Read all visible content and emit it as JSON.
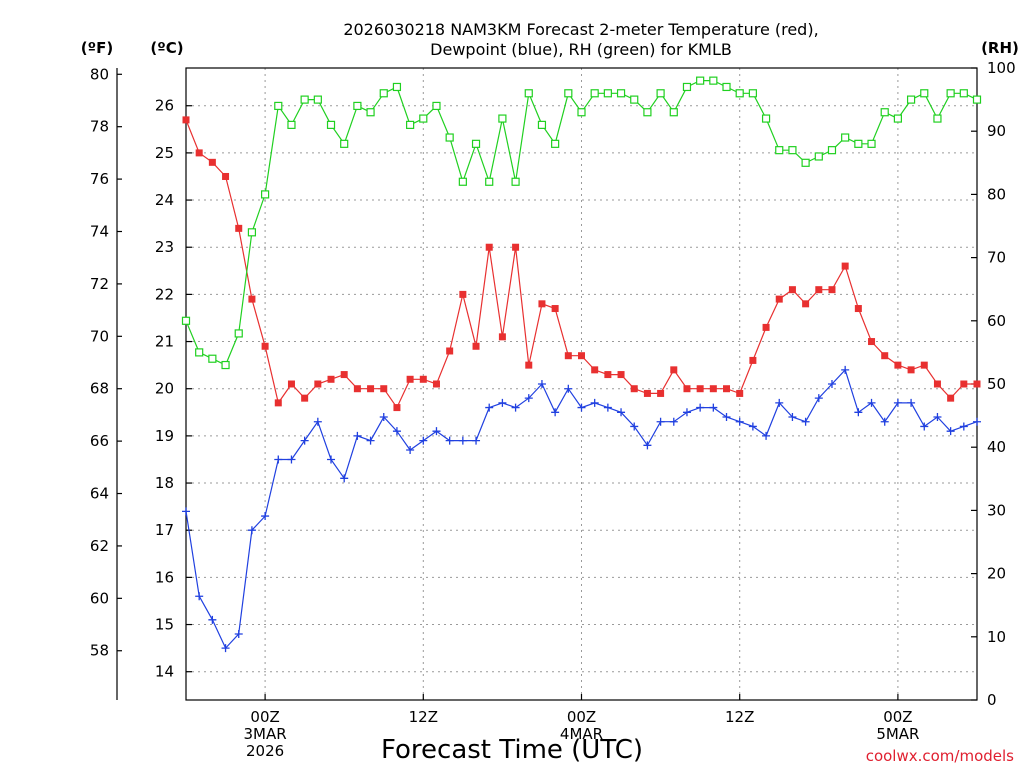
{
  "chart_data": {
    "type": "line",
    "title_lines": [
      "2026030218 NAM3KM Forecast 2-meter Temperature (red),",
      "Dewpoint (blue), RH (green) for KMLB"
    ],
    "xlabel": "Forecast Time (UTC)",
    "credit": "coolwx.com/models",
    "units": {
      "fahrenheit": "(ºF)",
      "celsius": "(ºC)",
      "rh": "(RH)"
    },
    "x_hours_range": [
      -6,
      54
    ],
    "x_ticks": [
      {
        "hour": 0,
        "lines": [
          "00Z",
          "3MAR",
          "2026"
        ]
      },
      {
        "hour": 12,
        "lines": [
          "12Z"
        ]
      },
      {
        "hour": 24,
        "lines": [
          "00Z",
          "4MAR"
        ]
      },
      {
        "hour": 36,
        "lines": [
          "12Z"
        ]
      },
      {
        "hour": 48,
        "lines": [
          "00Z",
          "5MAR"
        ]
      }
    ],
    "celsius_axis": {
      "range": [
        13.4,
        26.8
      ],
      "ticks": [
        14,
        15,
        16,
        17,
        18,
        19,
        20,
        21,
        22,
        23,
        24,
        25,
        26
      ]
    },
    "fahrenheit_ticks": [
      58,
      60,
      62,
      64,
      66,
      68,
      70,
      72,
      74,
      76,
      78,
      80
    ],
    "rh_axis": {
      "range": [
        0,
        100
      ],
      "ticks": [
        0,
        10,
        20,
        30,
        40,
        50,
        60,
        70,
        80,
        90,
        100
      ]
    },
    "grid": true,
    "x_hours": [
      -6,
      -5,
      -4,
      -3,
      -2,
      -1,
      0,
      1,
      2,
      3,
      4,
      5,
      6,
      7,
      8,
      9,
      10,
      11,
      12,
      13,
      14,
      15,
      16,
      17,
      18,
      19,
      20,
      21,
      22,
      23,
      24,
      25,
      26,
      27,
      28,
      29,
      30,
      31,
      32,
      33,
      34,
      35,
      36,
      37,
      38,
      39,
      40,
      41,
      42,
      43,
      44,
      45,
      46,
      47,
      48,
      49,
      50,
      51,
      52,
      53,
      54
    ],
    "series": [
      {
        "name": "Temperature",
        "color": "#e83030",
        "axis": "celsius",
        "marker": "filled-square",
        "values": [
          25.7,
          25.0,
          24.8,
          24.5,
          23.4,
          21.9,
          20.9,
          19.7,
          20.1,
          19.8,
          20.1,
          20.2,
          20.3,
          20.0,
          20.0,
          20.0,
          19.6,
          20.2,
          20.2,
          20.1,
          20.8,
          22.0,
          20.9,
          23.0,
          21.1,
          23.0,
          20.5,
          21.8,
          21.7,
          20.7,
          20.7,
          20.4,
          20.3,
          20.3,
          20.0,
          19.9,
          19.9,
          20.4,
          20.0,
          20.0,
          20.0,
          20.0,
          19.9,
          20.6,
          21.3,
          21.9,
          22.1,
          21.8,
          22.1,
          22.1,
          22.6,
          21.7,
          21.0,
          20.7,
          20.5,
          20.4,
          20.5,
          20.1,
          19.8,
          20.1,
          20.1
        ]
      },
      {
        "name": "Dewpoint",
        "color": "#2040e0",
        "axis": "celsius",
        "marker": "plus",
        "values": [
          17.4,
          15.6,
          15.1,
          14.5,
          14.8,
          17.0,
          17.3,
          18.5,
          18.5,
          18.9,
          19.3,
          18.5,
          18.1,
          19.0,
          18.9,
          19.4,
          19.1,
          18.7,
          18.9,
          19.1,
          18.9,
          18.9,
          18.9,
          19.6,
          19.7,
          19.6,
          19.8,
          20.1,
          19.5,
          20.0,
          19.6,
          19.7,
          19.6,
          19.5,
          19.2,
          18.8,
          19.3,
          19.3,
          19.5,
          19.6,
          19.6,
          19.4,
          19.3,
          19.2,
          19.0,
          19.7,
          19.4,
          19.3,
          19.8,
          20.1,
          20.4,
          19.5,
          19.7,
          19.3,
          19.7,
          19.7,
          19.2,
          19.4,
          19.1,
          19.2,
          19.3
        ]
      },
      {
        "name": "RH",
        "color": "#20d020",
        "axis": "rh",
        "marker": "open-square",
        "values": [
          60,
          55,
          54,
          53,
          58,
          74,
          80,
          94,
          91,
          95,
          95,
          91,
          88,
          94,
          93,
          96,
          97,
          91,
          92,
          94,
          89,
          82,
          88,
          82,
          92,
          82,
          96,
          91,
          88,
          96,
          93,
          96,
          96,
          96,
          95,
          93,
          96,
          93,
          97,
          98,
          98,
          97,
          96,
          96,
          92,
          87,
          87,
          85,
          86,
          87,
          89,
          88,
          88,
          93,
          92,
          95,
          96,
          92,
          96,
          96,
          95
        ]
      }
    ]
  }
}
